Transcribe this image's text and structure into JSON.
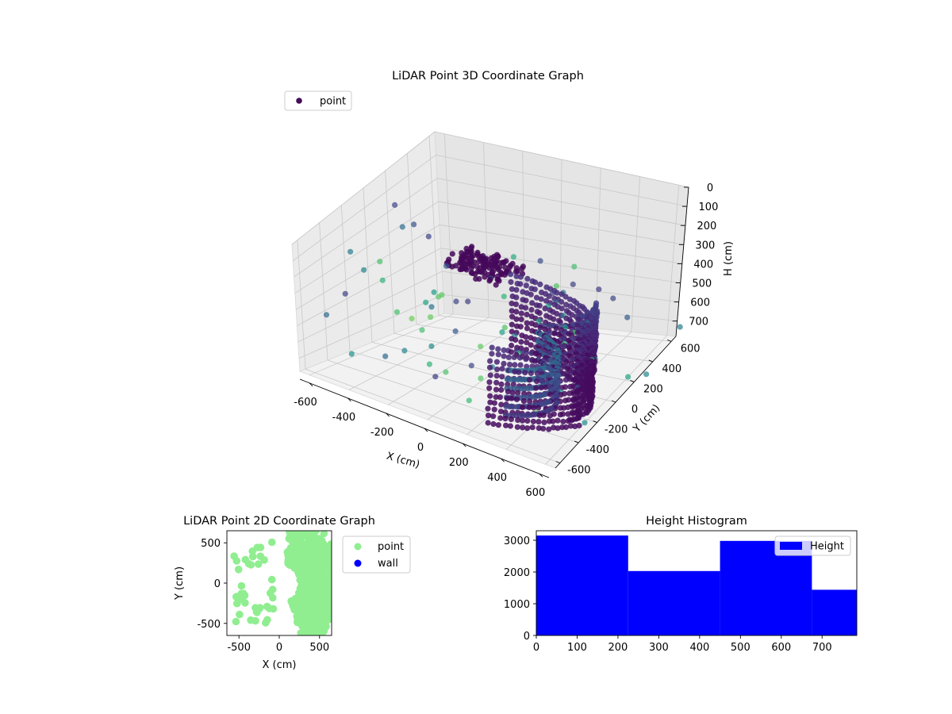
{
  "chart_data": [
    {
      "type": "scatter",
      "projection": "3d",
      "title": "LiDAR Point 3D Coordinate Graph",
      "xlabel": "X (cm)",
      "ylabel": "Y (cm)",
      "zlabel": "H (cm)",
      "xlim": [
        -650,
        650
      ],
      "ylim": [
        -650,
        650
      ],
      "zlim": [
        0,
        780
      ],
      "zaxis_inverted": true,
      "xticks": [
        -600,
        -400,
        -200,
        0,
        200,
        400,
        600
      ],
      "yticks": [
        -600,
        -400,
        -200,
        0,
        200,
        400,
        600
      ],
      "zticks": [
        0,
        100,
        200,
        300,
        400,
        500,
        600,
        700
      ],
      "colormap": "viridis",
      "grid": true,
      "legend": {
        "placement": "upper-left",
        "entries": [
          "point"
        ]
      },
      "series": [
        {
          "name": "point",
          "description": "dense curved wall of points colored by height"
        }
      ]
    },
    {
      "type": "scatter",
      "title": "LiDAR Point 2D Coordinate Graph",
      "xlabel": "X (cm)",
      "ylabel": "Y (cm)",
      "xlim": [
        -650,
        650
      ],
      "ylim": [
        -650,
        650
      ],
      "xticks": [
        -500,
        0,
        500
      ],
      "yticks": [
        -500,
        0,
        500
      ],
      "legend": {
        "placement": "outside-right",
        "entries": [
          "point",
          "wall"
        ]
      },
      "series": [
        {
          "name": "point",
          "color": "#90ee90"
        },
        {
          "name": "wall",
          "color": "#0000ff"
        }
      ]
    },
    {
      "type": "bar",
      "subtype": "histogram",
      "title": "Height Histogram",
      "xlabel": "",
      "ylabel": "",
      "xlim": [
        0,
        785
      ],
      "ylim": [
        0,
        3300
      ],
      "xticks": [
        0,
        100,
        200,
        300,
        400,
        500,
        600,
        700
      ],
      "yticks": [
        0,
        1000,
        2000,
        3000
      ],
      "bins": [
        {
          "start": 0,
          "end": 225,
          "count": 3150
        },
        {
          "start": 225,
          "end": 450,
          "count": 2030
        },
        {
          "start": 450,
          "end": 675,
          "count": 2980
        },
        {
          "start": 675,
          "end": 785,
          "count": 1440
        }
      ],
      "legend": {
        "placement": "upper-right",
        "entries": [
          "Height"
        ]
      },
      "series": [
        {
          "name": "Height",
          "color": "#0000ff"
        }
      ]
    }
  ]
}
